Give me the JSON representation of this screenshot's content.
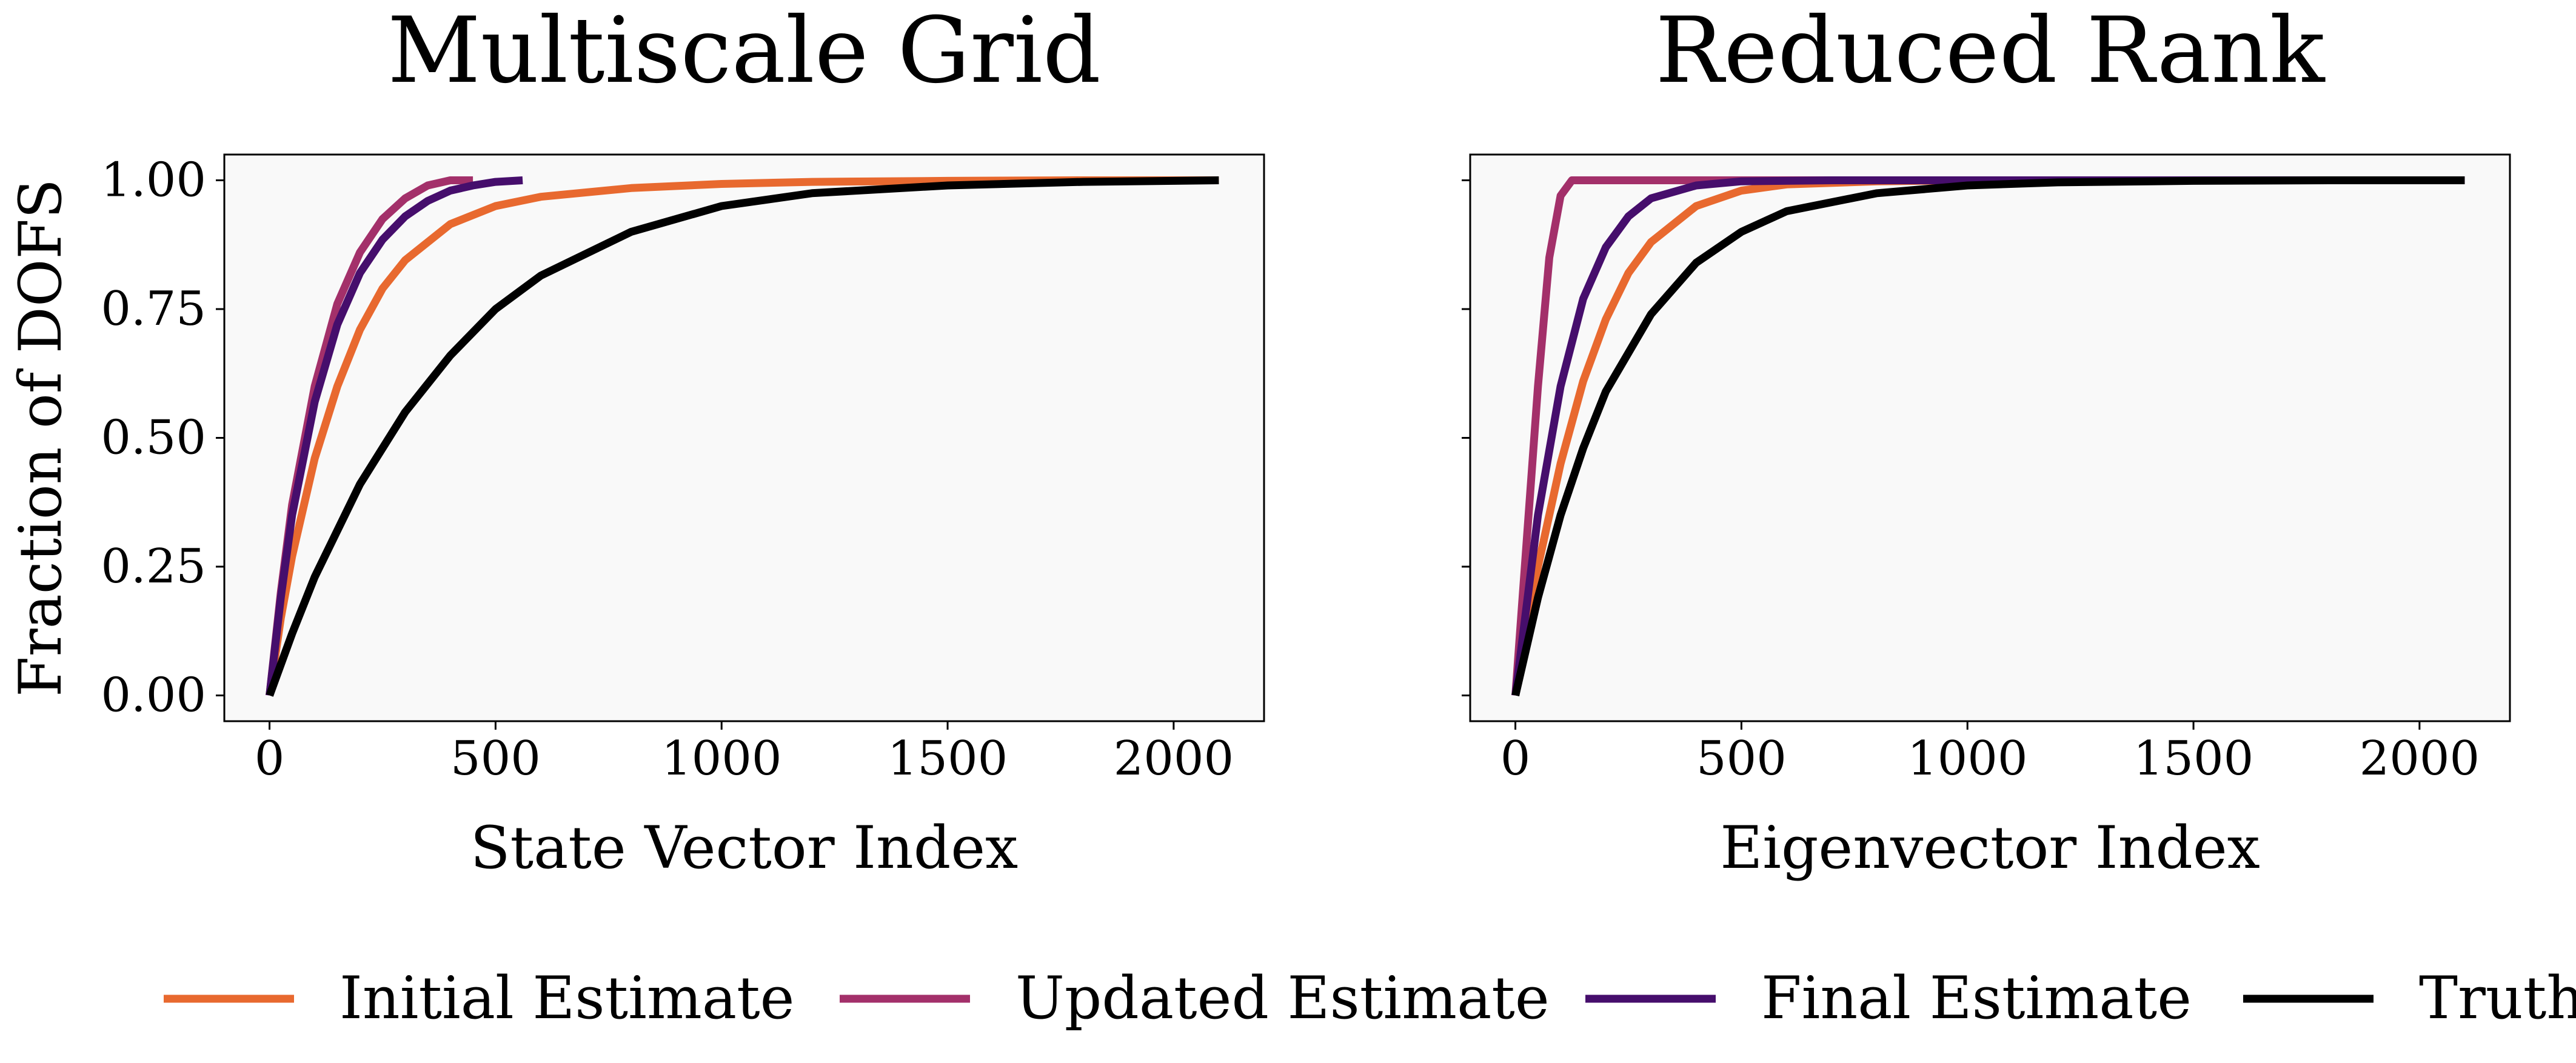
{
  "chart_data": [
    {
      "type": "line",
      "title": "Multiscale Grid",
      "xlabel": "State Vector Index",
      "ylabel": "Fraction of DOFS",
      "xlim": [
        -100,
        2200
      ],
      "ylim": [
        -0.05,
        1.05
      ],
      "xticks": [
        0,
        500,
        1000,
        1500,
        2000
      ],
      "yticks": [
        0.0,
        0.25,
        0.5,
        0.75,
        1.0
      ],
      "xtick_labels": [
        "0",
        "500",
        "1000",
        "1500",
        "2000"
      ],
      "ytick_labels": [
        "0.00",
        "0.25",
        "0.50",
        "0.75",
        "1.00"
      ],
      "background": "#f9f9f9",
      "series": [
        {
          "name": "Initial Estimate",
          "color": "#e8692f",
          "x": [
            0,
            25,
            50,
            100,
            150,
            200,
            250,
            300,
            400,
            500,
            600,
            800,
            1000,
            1200,
            1500,
            1800,
            2100
          ],
          "y": [
            0.0,
            0.15,
            0.27,
            0.46,
            0.6,
            0.71,
            0.79,
            0.845,
            0.915,
            0.95,
            0.968,
            0.985,
            0.993,
            0.997,
            0.999,
            1.0,
            1.0
          ]
        },
        {
          "name": "Updated Estimate",
          "color": "#a3306a",
          "x": [
            0,
            25,
            50,
            100,
            150,
            200,
            250,
            300,
            350,
            400,
            450
          ],
          "y": [
            0.0,
            0.2,
            0.37,
            0.6,
            0.76,
            0.86,
            0.925,
            0.965,
            0.99,
            1.0,
            1.0
          ]
        },
        {
          "name": "Final Estimate",
          "color": "#460e6c",
          "x": [
            0,
            25,
            50,
            100,
            150,
            200,
            250,
            300,
            350,
            400,
            450,
            500,
            560
          ],
          "y": [
            0.0,
            0.19,
            0.35,
            0.57,
            0.72,
            0.82,
            0.885,
            0.93,
            0.96,
            0.98,
            0.99,
            0.997,
            1.0
          ]
        },
        {
          "name": "Truth",
          "color": "#000000",
          "x": [
            0,
            50,
            100,
            150,
            200,
            300,
            400,
            500,
            600,
            800,
            1000,
            1200,
            1500,
            1800,
            2100
          ],
          "y": [
            0.0,
            0.12,
            0.23,
            0.32,
            0.41,
            0.55,
            0.66,
            0.75,
            0.815,
            0.9,
            0.95,
            0.975,
            0.99,
            0.997,
            1.0
          ]
        }
      ]
    },
    {
      "type": "line",
      "title": "Reduced Rank",
      "xlabel": "Eigenvector Index",
      "ylabel": "",
      "xlim": [
        -100,
        2200
      ],
      "ylim": [
        -0.05,
        1.05
      ],
      "xticks": [
        0,
        500,
        1000,
        1500,
        2000
      ],
      "yticks": [
        0.0,
        0.25,
        0.5,
        0.75,
        1.0
      ],
      "xtick_labels": [
        "0",
        "500",
        "1000",
        "1500",
        "2000"
      ],
      "ytick_labels": [],
      "background": "#f9f9f9",
      "series": [
        {
          "name": "Initial Estimate",
          "color": "#e8692f",
          "x": [
            0,
            50,
            100,
            150,
            200,
            250,
            300,
            400,
            500,
            600,
            800,
            1000,
            1500,
            2100
          ],
          "y": [
            0.0,
            0.25,
            0.45,
            0.61,
            0.73,
            0.82,
            0.88,
            0.95,
            0.98,
            0.992,
            0.998,
            1.0,
            1.0,
            1.0
          ]
        },
        {
          "name": "Updated Estimate",
          "color": "#a3306a",
          "x": [
            0,
            25,
            50,
            75,
            100,
            125,
            600,
            1000,
            2100
          ],
          "y": [
            0.0,
            0.3,
            0.6,
            0.85,
            0.97,
            1.0,
            1.0,
            1.0,
            1.0
          ]
        },
        {
          "name": "Final Estimate",
          "color": "#460e6c",
          "x": [
            0,
            50,
            100,
            150,
            200,
            250,
            300,
            400,
            500,
            700,
            1000,
            2100
          ],
          "y": [
            0.0,
            0.35,
            0.6,
            0.77,
            0.87,
            0.93,
            0.965,
            0.99,
            0.998,
            1.0,
            1.0,
            1.0
          ]
        },
        {
          "name": "Truth",
          "color": "#000000",
          "x": [
            0,
            50,
            100,
            150,
            200,
            300,
            400,
            500,
            600,
            800,
            1000,
            1200,
            1500,
            1800,
            2100
          ],
          "y": [
            0.0,
            0.19,
            0.35,
            0.48,
            0.59,
            0.74,
            0.84,
            0.9,
            0.94,
            0.975,
            0.99,
            0.996,
            0.999,
            1.0,
            1.0
          ]
        }
      ]
    }
  ],
  "legend": {
    "placement": "bottom",
    "items": [
      {
        "label": "Initial Estimate",
        "color": "#e8692f"
      },
      {
        "label": "Updated Estimate",
        "color": "#a3306a"
      },
      {
        "label": "Final Estimate",
        "color": "#460e6c"
      },
      {
        "label": "Truth",
        "color": "#000000"
      }
    ]
  }
}
